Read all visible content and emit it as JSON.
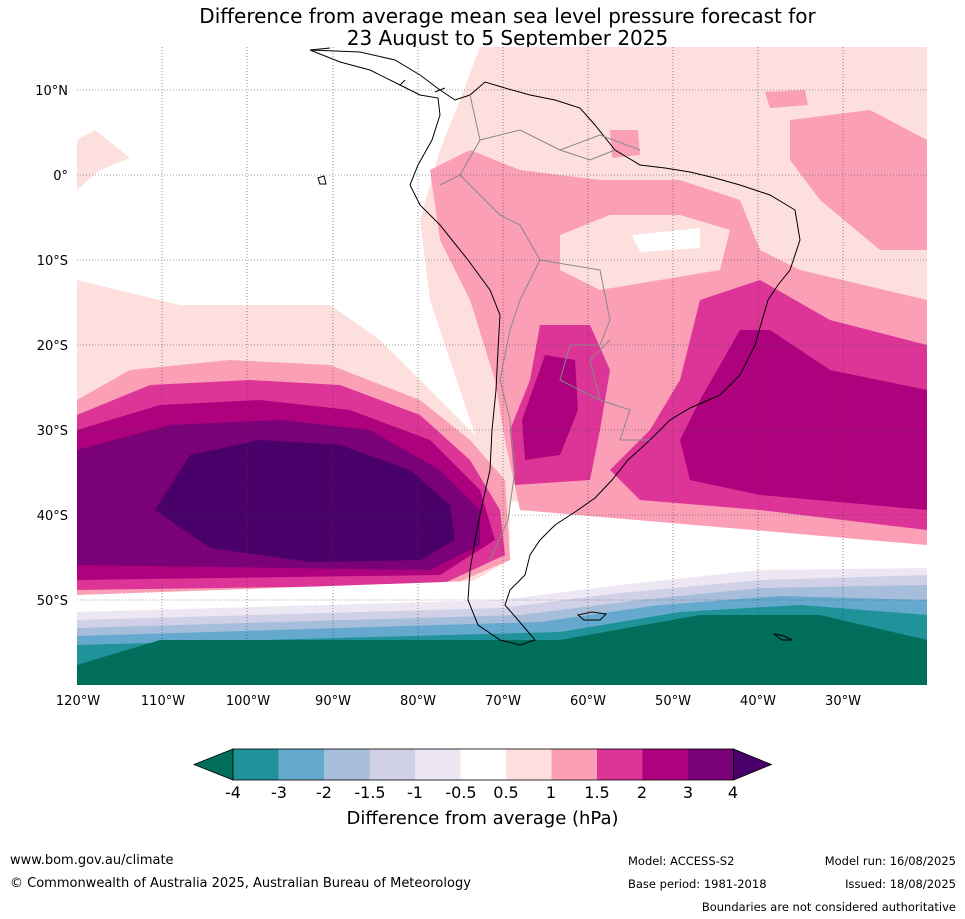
{
  "title_line1": "Difference from average mean sea level pressure forecast for",
  "title_line2": "23 August to 5 September 2025",
  "lat_labels": [
    "10°N",
    "0°",
    "10°S",
    "20°S",
    "30°S",
    "40°S",
    "50°S"
  ],
  "lon_labels": [
    "120°W",
    "110°W",
    "100°W",
    "90°W",
    "80°W",
    "70°W",
    "60°W",
    "50°W",
    "40°W",
    "30°W"
  ],
  "colorbar": {
    "title": "Difference from average (hPa)",
    "ticks": [
      "-4",
      "-3",
      "-2",
      "-1.5",
      "-1",
      "-0.5",
      "0.5",
      "1",
      "1.5",
      "2",
      "3",
      "4"
    ],
    "colors": [
      "#006e5a",
      "#1f9399",
      "#66a9cf",
      "#a6bddb",
      "#d0d1e6",
      "#ece7f2",
      "#ffffff",
      "#fde0dd",
      "#fa9fb5",
      "#dd3497",
      "#ae017e",
      "#7a0177",
      "#49006a"
    ]
  },
  "footer": {
    "website": "www.bom.gov.au/climate",
    "copyright": "© Commonwealth of Australia 2025, Australian Bureau of Meteorology",
    "model": "Model: ACCESS-S2",
    "base_period": "Base period: 1981-2018",
    "model_run": "Model run: 16/08/2025",
    "issued": "Issued: 18/08/2025",
    "disclaimer": "Boundaries are not considered authoritative"
  }
}
